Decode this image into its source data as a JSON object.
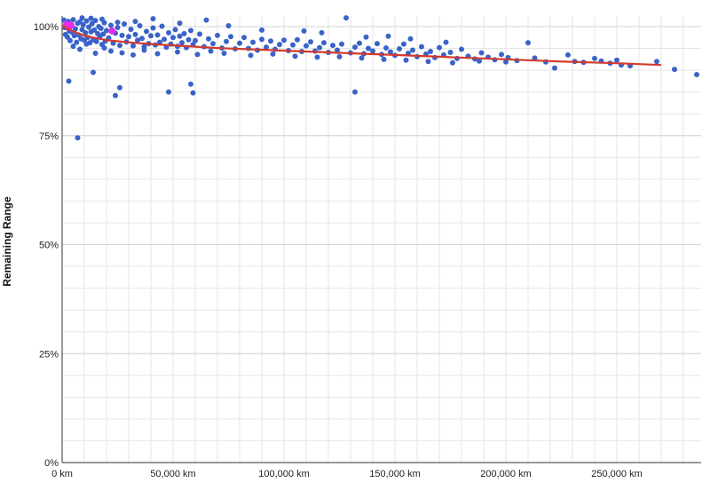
{
  "chart_data": {
    "type": "scatter",
    "title": "",
    "xlabel": "",
    "ylabel": "Remaining Range",
    "xlim": [
      0,
      288000
    ],
    "ylim": [
      0,
      100
    ],
    "x_ticks": [
      0,
      50000,
      100000,
      150000,
      200000,
      250000
    ],
    "x_tick_labels": [
      "0 km",
      "50,000 km",
      "100,000 km",
      "150,000 km",
      "200,000 km",
      "250,000 km"
    ],
    "y_ticks": [
      0,
      25,
      50,
      75,
      100
    ],
    "y_tick_labels": [
      "0%",
      "25%",
      "50%",
      "75%",
      "100%"
    ],
    "grid": true,
    "legend": "none",
    "colors": {
      "points": "#3a63c9",
      "highlight": "#e62ee6",
      "trend": "#d23a2e",
      "grid": "#e6e6e6",
      "axis": "#333333"
    },
    "series": [
      {
        "type": "scatter",
        "points": [
          [
            800,
            101.5
          ],
          [
            1200,
            99.8
          ],
          [
            1500,
            98.2
          ],
          [
            2000,
            100.5
          ],
          [
            2400,
            97.6
          ],
          [
            2800,
            101.2
          ],
          [
            3200,
            99.0
          ],
          [
            3600,
            96.8
          ],
          [
            4000,
            100.1
          ],
          [
            4500,
            98.7
          ],
          [
            5000,
            101.6
          ],
          [
            5500,
            97.9
          ],
          [
            6000,
            99.5
          ],
          [
            6500,
            96.4
          ],
          [
            7000,
            100.8
          ],
          [
            7500,
            98.1
          ],
          [
            8000,
            101.1
          ],
          [
            8500,
            97.2
          ],
          [
            9000,
            99.3
          ],
          [
            9500,
            100.4
          ],
          [
            10000,
            96.9
          ],
          [
            10500,
            98.6
          ],
          [
            11000,
            101.3
          ],
          [
            11500,
            97.5
          ],
          [
            12000,
            99.9
          ],
          [
            12500,
            96.3
          ],
          [
            13000,
            98.8
          ],
          [
            13500,
            100.7
          ],
          [
            14000,
            97.0
          ],
          [
            14500,
            99.2
          ],
          [
            15000,
            101.4
          ],
          [
            15500,
            96.6
          ],
          [
            16000,
            98.4
          ],
          [
            16500,
            100.0
          ],
          [
            17000,
            97.8
          ],
          [
            17500,
            99.6
          ],
          [
            18000,
            95.9
          ],
          [
            18500,
            98.3
          ],
          [
            19000,
            100.9
          ],
          [
            19500,
            96.7
          ],
          [
            20000,
            99.1
          ],
          [
            21000,
            97.4
          ],
          [
            22000,
            100.3
          ],
          [
            23000,
            96.2
          ],
          [
            24000,
            98.5
          ],
          [
            25000,
            99.8
          ],
          [
            26000,
            95.7
          ],
          [
            27000,
            98.0
          ],
          [
            28000,
            100.6
          ],
          [
            29000,
            96.5
          ],
          [
            30000,
            97.7
          ],
          [
            31000,
            99.4
          ],
          [
            32000,
            95.6
          ],
          [
            33000,
            98.2
          ],
          [
            34000,
            96.9
          ],
          [
            35000,
            100.2
          ],
          [
            36000,
            97.3
          ],
          [
            37000,
            95.4
          ],
          [
            38000,
            98.9
          ],
          [
            39000,
            96.1
          ],
          [
            40000,
            97.9
          ],
          [
            41000,
            99.7
          ],
          [
            42000,
            95.8
          ],
          [
            43000,
            98.1
          ],
          [
            44000,
            96.4
          ],
          [
            45000,
            100.1
          ],
          [
            46000,
            97.1
          ],
          [
            47000,
            95.3
          ],
          [
            48000,
            98.6
          ],
          [
            49000,
            96.0
          ],
          [
            50000,
            97.5
          ],
          [
            51000,
            99.3
          ],
          [
            52000,
            95.5
          ],
          [
            53000,
            97.8
          ],
          [
            54000,
            96.3
          ],
          [
            55000,
            98.4
          ],
          [
            56000,
            95.2
          ],
          [
            57000,
            97.0
          ],
          [
            58000,
            99.1
          ],
          [
            59000,
            95.9
          ],
          [
            60000,
            96.8
          ],
          [
            62000,
            98.3
          ],
          [
            64000,
            95.4
          ],
          [
            66000,
            97.2
          ],
          [
            68000,
            96.1
          ],
          [
            70000,
            98.0
          ],
          [
            72000,
            95.1
          ],
          [
            74000,
            96.6
          ],
          [
            76000,
            97.7
          ],
          [
            78000,
            94.9
          ],
          [
            80000,
            96.2
          ],
          [
            82000,
            97.5
          ],
          [
            84000,
            95.0
          ],
          [
            86000,
            96.4
          ],
          [
            88000,
            94.6
          ],
          [
            90000,
            97.1
          ],
          [
            92000,
            95.3
          ],
          [
            94000,
            96.7
          ],
          [
            96000,
            94.8
          ],
          [
            98000,
            95.9
          ],
          [
            100000,
            96.9
          ],
          [
            102000,
            94.5
          ],
          [
            104000,
            95.8
          ],
          [
            106000,
            97.0
          ],
          [
            108000,
            94.3
          ],
          [
            110000,
            95.6
          ],
          [
            112000,
            96.5
          ],
          [
            114000,
            94.4
          ],
          [
            116000,
            95.2
          ],
          [
            118000,
            96.3
          ],
          [
            120000,
            94.1
          ],
          [
            122000,
            95.7
          ],
          [
            124000,
            94.6
          ],
          [
            126000,
            96.0
          ],
          [
            128000,
            102.0
          ],
          [
            130000,
            94.0
          ],
          [
            132000,
            95.3
          ],
          [
            134000,
            96.2
          ],
          [
            136000,
            93.8
          ],
          [
            138000,
            95.0
          ],
          [
            140000,
            94.4
          ],
          [
            142000,
            96.1
          ],
          [
            144000,
            93.6
          ],
          [
            146000,
            95.1
          ],
          [
            148000,
            94.2
          ],
          [
            150000,
            93.4
          ],
          [
            152000,
            94.9
          ],
          [
            154000,
            96.0
          ],
          [
            156000,
            93.9
          ],
          [
            158000,
            94.6
          ],
          [
            160000,
            93.1
          ],
          [
            162000,
            95.4
          ],
          [
            164000,
            93.7
          ],
          [
            166000,
            94.3
          ],
          [
            168000,
            92.9
          ],
          [
            170000,
            95.2
          ],
          [
            172000,
            93.5
          ],
          [
            175000,
            94.1
          ],
          [
            178000,
            92.7
          ],
          [
            180000,
            94.8
          ],
          [
            183000,
            93.2
          ],
          [
            186000,
            92.6
          ],
          [
            189000,
            94.0
          ],
          [
            192000,
            93.0
          ],
          [
            195000,
            92.4
          ],
          [
            198000,
            93.6
          ],
          [
            201000,
            92.9
          ],
          [
            205000,
            92.2
          ],
          [
            210000,
            96.3
          ],
          [
            213000,
            92.8
          ],
          [
            218000,
            91.9
          ],
          [
            222000,
            90.5
          ],
          [
            228000,
            93.5
          ],
          [
            231000,
            92.0
          ],
          [
            235000,
            91.8
          ],
          [
            240000,
            92.7
          ],
          [
            243000,
            92.1
          ],
          [
            247000,
            91.6
          ],
          [
            250000,
            92.3
          ],
          [
            252000,
            91.2
          ],
          [
            256000,
            91.0
          ],
          [
            268000,
            92.0
          ],
          [
            276000,
            90.2
          ],
          [
            286000,
            89.0
          ],
          [
            3000,
            87.5
          ],
          [
            7000,
            74.5
          ],
          [
            14000,
            89.5
          ],
          [
            26000,
            86.0
          ],
          [
            24000,
            84.2
          ],
          [
            48000,
            85.0
          ],
          [
            58000,
            86.8
          ],
          [
            59000,
            84.8
          ],
          [
            132000,
            85.0
          ],
          [
            5000,
            95.5
          ],
          [
            8000,
            94.8
          ],
          [
            11000,
            96.0
          ],
          [
            15000,
            93.9
          ],
          [
            19000,
            95.1
          ],
          [
            22000,
            94.4
          ],
          [
            27000,
            94.0
          ],
          [
            32000,
            93.5
          ],
          [
            37000,
            94.6
          ],
          [
            43000,
            93.8
          ],
          [
            52000,
            94.2
          ],
          [
            61000,
            93.6
          ],
          [
            67000,
            94.4
          ],
          [
            73000,
            93.9
          ],
          [
            85000,
            93.4
          ],
          [
            95000,
            93.7
          ],
          [
            105000,
            93.2
          ],
          [
            115000,
            93.0
          ],
          [
            125000,
            93.1
          ],
          [
            135000,
            92.8
          ],
          [
            145000,
            92.5
          ],
          [
            155000,
            92.3
          ],
          [
            165000,
            92.0
          ],
          [
            176000,
            91.7
          ],
          [
            188000,
            92.1
          ],
          [
            200000,
            91.9
          ],
          [
            9000,
            102.0
          ],
          [
            13000,
            101.9
          ],
          [
            18000,
            101.7
          ],
          [
            25000,
            101.0
          ],
          [
            33000,
            101.2
          ],
          [
            41000,
            101.8
          ],
          [
            53000,
            100.8
          ],
          [
            65000,
            101.5
          ],
          [
            75000,
            100.2
          ],
          [
            90000,
            99.2
          ],
          [
            109000,
            99.0
          ],
          [
            117000,
            98.6
          ],
          [
            137000,
            97.6
          ],
          [
            147000,
            97.8
          ],
          [
            157000,
            97.2
          ],
          [
            173000,
            96.4
          ]
        ]
      },
      {
        "type": "scatter",
        "name": "",
        "points": [
          [
            2000,
            100.5
          ],
          [
            3000,
            99.8
          ],
          [
            4000,
            100.3
          ],
          [
            22500,
            99.0
          ]
        ]
      },
      {
        "type": "line",
        "name": "",
        "points": [
          [
            0,
            100.2
          ],
          [
            2000,
            99.6
          ],
          [
            5000,
            98.9
          ],
          [
            10000,
            97.9
          ],
          [
            20000,
            96.9
          ],
          [
            30000,
            96.4
          ],
          [
            40000,
            96.0
          ],
          [
            50000,
            95.7
          ],
          [
            70000,
            95.1
          ],
          [
            100000,
            94.5
          ],
          [
            130000,
            93.9
          ],
          [
            150000,
            93.5
          ],
          [
            175000,
            93.0
          ],
          [
            200000,
            92.5
          ],
          [
            225000,
            92.0
          ],
          [
            250000,
            91.6
          ],
          [
            270000,
            91.2
          ]
        ]
      }
    ]
  }
}
